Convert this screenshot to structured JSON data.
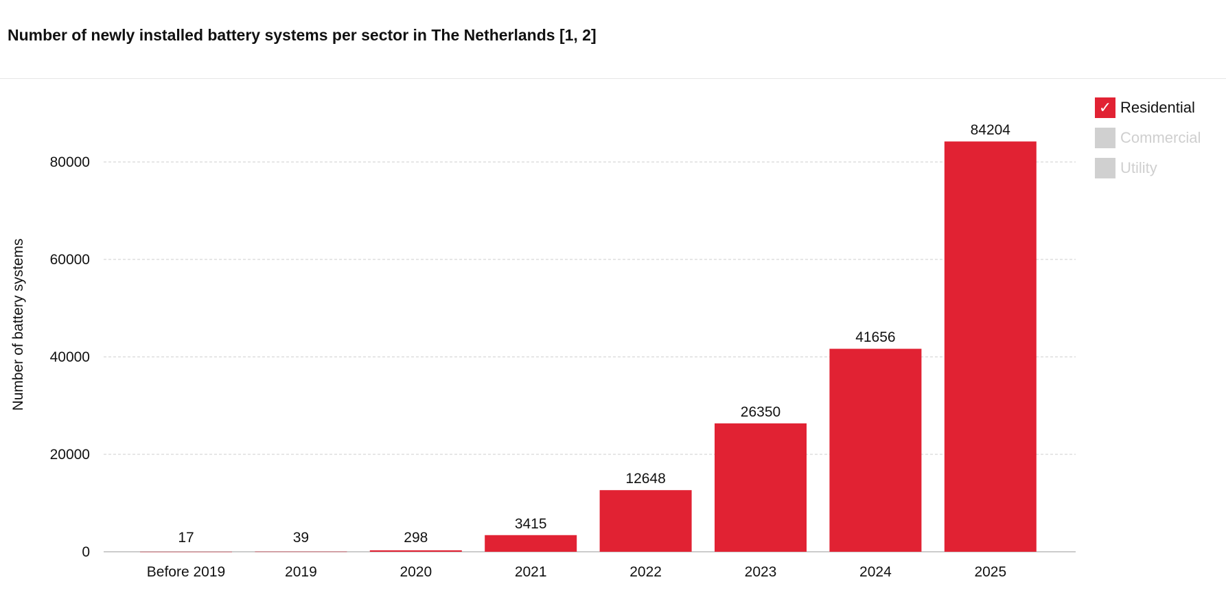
{
  "title": "Number of newly installed battery systems per sector in The Netherlands [1, 2]",
  "legend": {
    "items": [
      {
        "label": "Residential",
        "active": true,
        "color": "#e12233",
        "icon": "check-icon",
        "glyph": "✓"
      },
      {
        "label": "Commercial",
        "active": false,
        "color": "#d0d0d0"
      },
      {
        "label": "Utility",
        "active": false,
        "color": "#d0d0d0"
      }
    ]
  },
  "chart_data": {
    "type": "bar",
    "title": "Number of newly installed battery systems per sector in The Netherlands [1, 2]",
    "xlabel": "",
    "ylabel": "Number of battery systems",
    "categories": [
      "Before 2019",
      "2019",
      "2020",
      "2021",
      "2022",
      "2023",
      "2024",
      "2025"
    ],
    "series": [
      {
        "name": "Residential",
        "color": "#e12233",
        "values": [
          17,
          39,
          298,
          3415,
          12648,
          26350,
          41656,
          84204
        ]
      }
    ],
    "yticks": [
      0,
      20000,
      40000,
      60000,
      80000
    ],
    "ylim": [
      0,
      90000
    ],
    "grid": true,
    "legend_position": "top-right"
  }
}
